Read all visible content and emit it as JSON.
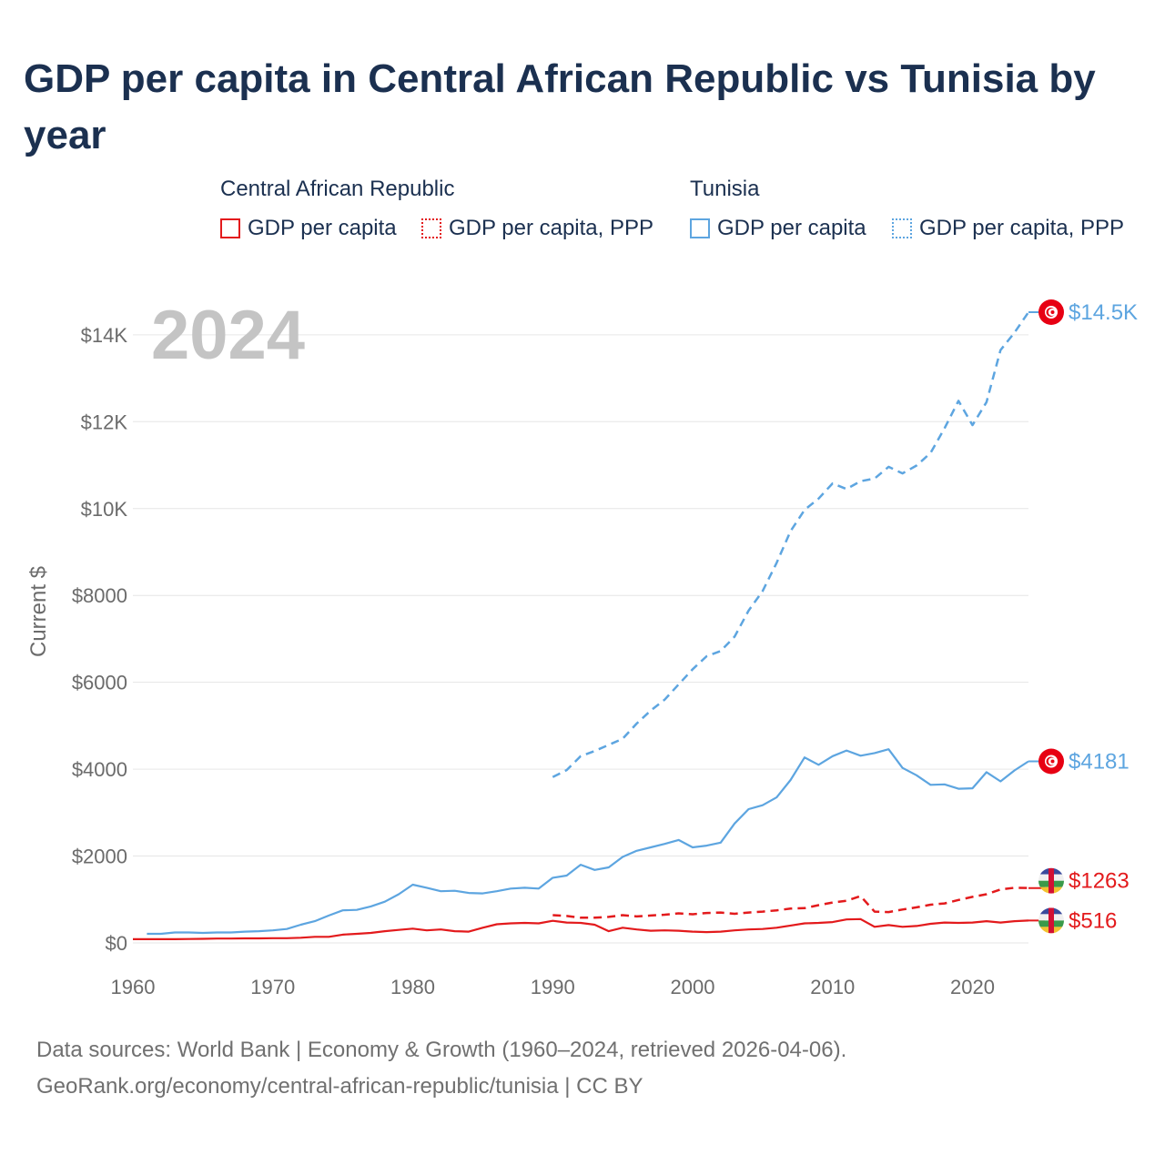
{
  "header": {
    "title": "GDP per capita in Central African Republic vs Tunisia by year"
  },
  "legend": {
    "groups": [
      {
        "country": "Central African Republic",
        "items": [
          {
            "label": "GDP per capita",
            "style": "solid"
          },
          {
            "label": "GDP per capita, PPP",
            "style": "dotted"
          }
        ]
      },
      {
        "country": "Tunisia",
        "items": [
          {
            "label": "GDP per capita",
            "style": "solid"
          },
          {
            "label": "GDP per capita, PPP",
            "style": "dotted"
          }
        ]
      }
    ]
  },
  "colors": {
    "car": "#e31a1c",
    "tunisia": "#5da5e0",
    "grid": "#e6e6e6",
    "axis_text": "#6b6b6b",
    "year_watermark": "#c4c4c4"
  },
  "footer": {
    "line1": "Data sources: World Bank | Economy & Growth (1960–2024, retrieved 2026-04-06).",
    "line2": "GeoRank.org/economy/central-african-republic/tunisia | CC BY"
  },
  "chart_data": {
    "type": "line",
    "year_label": "2024",
    "ylabel": "Current $",
    "xlim": [
      1960,
      2024
    ],
    "ylim": [
      0,
      14500
    ],
    "x_ticks": [
      1960,
      1970,
      1980,
      1990,
      2000,
      2010,
      2020
    ],
    "y_ticks": [
      {
        "value": 0,
        "label": "$0"
      },
      {
        "value": 2000,
        "label": "$2000"
      },
      {
        "value": 4000,
        "label": "$4000"
      },
      {
        "value": 6000,
        "label": "$6000"
      },
      {
        "value": 8000,
        "label": "$8000"
      },
      {
        "value": 10000,
        "label": "$10K"
      },
      {
        "value": 12000,
        "label": "$12K"
      },
      {
        "value": 14000,
        "label": "$14K"
      }
    ],
    "series": [
      {
        "name": "Tunisia GDP per capita, PPP",
        "country": "tunisia",
        "style": "dashed",
        "end_label": "$14.5K",
        "points": [
          [
            1990,
            3820
          ],
          [
            1991,
            3980
          ],
          [
            1992,
            4300
          ],
          [
            1993,
            4420
          ],
          [
            1994,
            4560
          ],
          [
            1995,
            4700
          ],
          [
            1996,
            5050
          ],
          [
            1997,
            5350
          ],
          [
            1998,
            5600
          ],
          [
            1999,
            5950
          ],
          [
            2000,
            6300
          ],
          [
            2001,
            6600
          ],
          [
            2002,
            6720
          ],
          [
            2003,
            7050
          ],
          [
            2004,
            7650
          ],
          [
            2005,
            8100
          ],
          [
            2006,
            8750
          ],
          [
            2007,
            9480
          ],
          [
            2008,
            9970
          ],
          [
            2009,
            10230
          ],
          [
            2010,
            10580
          ],
          [
            2011,
            10450
          ],
          [
            2012,
            10630
          ],
          [
            2013,
            10690
          ],
          [
            2014,
            10960
          ],
          [
            2015,
            10810
          ],
          [
            2016,
            10990
          ],
          [
            2017,
            11280
          ],
          [
            2018,
            11850
          ],
          [
            2019,
            12480
          ],
          [
            2020,
            11920
          ],
          [
            2021,
            12450
          ],
          [
            2022,
            13650
          ],
          [
            2023,
            14050
          ],
          [
            2024,
            14520
          ]
        ]
      },
      {
        "name": "Tunisia GDP per capita",
        "country": "tunisia",
        "style": "solid",
        "end_label": "$4181",
        "points": [
          [
            1961,
            210
          ],
          [
            1962,
            210
          ],
          [
            1963,
            240
          ],
          [
            1964,
            240
          ],
          [
            1965,
            230
          ],
          [
            1966,
            240
          ],
          [
            1967,
            240
          ],
          [
            1968,
            260
          ],
          [
            1969,
            270
          ],
          [
            1970,
            290
          ],
          [
            1971,
            320
          ],
          [
            1972,
            420
          ],
          [
            1973,
            500
          ],
          [
            1974,
            630
          ],
          [
            1975,
            750
          ],
          [
            1976,
            760
          ],
          [
            1977,
            840
          ],
          [
            1978,
            950
          ],
          [
            1979,
            1120
          ],
          [
            1980,
            1340
          ],
          [
            1981,
            1270
          ],
          [
            1982,
            1190
          ],
          [
            1983,
            1200
          ],
          [
            1984,
            1150
          ],
          [
            1985,
            1140
          ],
          [
            1986,
            1190
          ],
          [
            1987,
            1250
          ],
          [
            1988,
            1270
          ],
          [
            1989,
            1250
          ],
          [
            1990,
            1500
          ],
          [
            1991,
            1550
          ],
          [
            1992,
            1800
          ],
          [
            1993,
            1680
          ],
          [
            1994,
            1740
          ],
          [
            1995,
            1980
          ],
          [
            1996,
            2120
          ],
          [
            1997,
            2200
          ],
          [
            1998,
            2280
          ],
          [
            1999,
            2370
          ],
          [
            2000,
            2200
          ],
          [
            2001,
            2240
          ],
          [
            2002,
            2310
          ],
          [
            2003,
            2750
          ],
          [
            2004,
            3080
          ],
          [
            2005,
            3170
          ],
          [
            2006,
            3350
          ],
          [
            2007,
            3750
          ],
          [
            2008,
            4270
          ],
          [
            2009,
            4100
          ],
          [
            2010,
            4300
          ],
          [
            2011,
            4430
          ],
          [
            2012,
            4310
          ],
          [
            2013,
            4370
          ],
          [
            2014,
            4460
          ],
          [
            2015,
            4030
          ],
          [
            2016,
            3860
          ],
          [
            2017,
            3640
          ],
          [
            2018,
            3650
          ],
          [
            2019,
            3550
          ],
          [
            2020,
            3560
          ],
          [
            2021,
            3930
          ],
          [
            2022,
            3720
          ],
          [
            2023,
            3970
          ],
          [
            2024,
            4181
          ]
        ]
      },
      {
        "name": "Central African Republic GDP per capita, PPP",
        "country": "car",
        "style": "dashed",
        "end_label": "$1263",
        "points": [
          [
            1990,
            640
          ],
          [
            1991,
            620
          ],
          [
            1992,
            580
          ],
          [
            1993,
            580
          ],
          [
            1994,
            600
          ],
          [
            1995,
            640
          ],
          [
            1996,
            610
          ],
          [
            1997,
            630
          ],
          [
            1998,
            650
          ],
          [
            1999,
            680
          ],
          [
            2000,
            660
          ],
          [
            2001,
            690
          ],
          [
            2002,
            700
          ],
          [
            2003,
            670
          ],
          [
            2004,
            700
          ],
          [
            2005,
            720
          ],
          [
            2006,
            750
          ],
          [
            2007,
            790
          ],
          [
            2008,
            800
          ],
          [
            2009,
            870
          ],
          [
            2010,
            930
          ],
          [
            2011,
            970
          ],
          [
            2012,
            1080
          ],
          [
            2013,
            720
          ],
          [
            2014,
            710
          ],
          [
            2015,
            770
          ],
          [
            2016,
            820
          ],
          [
            2017,
            880
          ],
          [
            2018,
            910
          ],
          [
            2019,
            990
          ],
          [
            2020,
            1060
          ],
          [
            2021,
            1120
          ],
          [
            2022,
            1230
          ],
          [
            2023,
            1270
          ],
          [
            2024,
            1263
          ]
        ]
      },
      {
        "name": "Central African Republic GDP per capita",
        "country": "car",
        "style": "solid",
        "end_label": "$516",
        "points": [
          [
            1960,
            85
          ],
          [
            1961,
            85
          ],
          [
            1962,
            85
          ],
          [
            1963,
            85
          ],
          [
            1964,
            90
          ],
          [
            1965,
            95
          ],
          [
            1966,
            100
          ],
          [
            1967,
            100
          ],
          [
            1968,
            105
          ],
          [
            1969,
            105
          ],
          [
            1970,
            110
          ],
          [
            1971,
            110
          ],
          [
            1972,
            120
          ],
          [
            1973,
            140
          ],
          [
            1974,
            140
          ],
          [
            1975,
            190
          ],
          [
            1976,
            210
          ],
          [
            1977,
            230
          ],
          [
            1978,
            270
          ],
          [
            1979,
            300
          ],
          [
            1980,
            330
          ],
          [
            1981,
            290
          ],
          [
            1982,
            310
          ],
          [
            1983,
            270
          ],
          [
            1984,
            260
          ],
          [
            1985,
            350
          ],
          [
            1986,
            430
          ],
          [
            1987,
            450
          ],
          [
            1988,
            460
          ],
          [
            1989,
            450
          ],
          [
            1990,
            510
          ],
          [
            1991,
            470
          ],
          [
            1992,
            460
          ],
          [
            1993,
            420
          ],
          [
            1994,
            270
          ],
          [
            1995,
            350
          ],
          [
            1996,
            310
          ],
          [
            1997,
            280
          ],
          [
            1998,
            290
          ],
          [
            1999,
            280
          ],
          [
            2000,
            260
          ],
          [
            2001,
            250
          ],
          [
            2002,
            260
          ],
          [
            2003,
            290
          ],
          [
            2004,
            310
          ],
          [
            2005,
            320
          ],
          [
            2006,
            350
          ],
          [
            2007,
            400
          ],
          [
            2008,
            450
          ],
          [
            2009,
            460
          ],
          [
            2010,
            480
          ],
          [
            2011,
            540
          ],
          [
            2012,
            550
          ],
          [
            2013,
            370
          ],
          [
            2014,
            410
          ],
          [
            2015,
            370
          ],
          [
            2016,
            390
          ],
          [
            2017,
            440
          ],
          [
            2018,
            470
          ],
          [
            2019,
            460
          ],
          [
            2020,
            470
          ],
          [
            2021,
            500
          ],
          [
            2022,
            470
          ],
          [
            2023,
            500
          ],
          [
            2024,
            516
          ]
        ]
      }
    ]
  }
}
